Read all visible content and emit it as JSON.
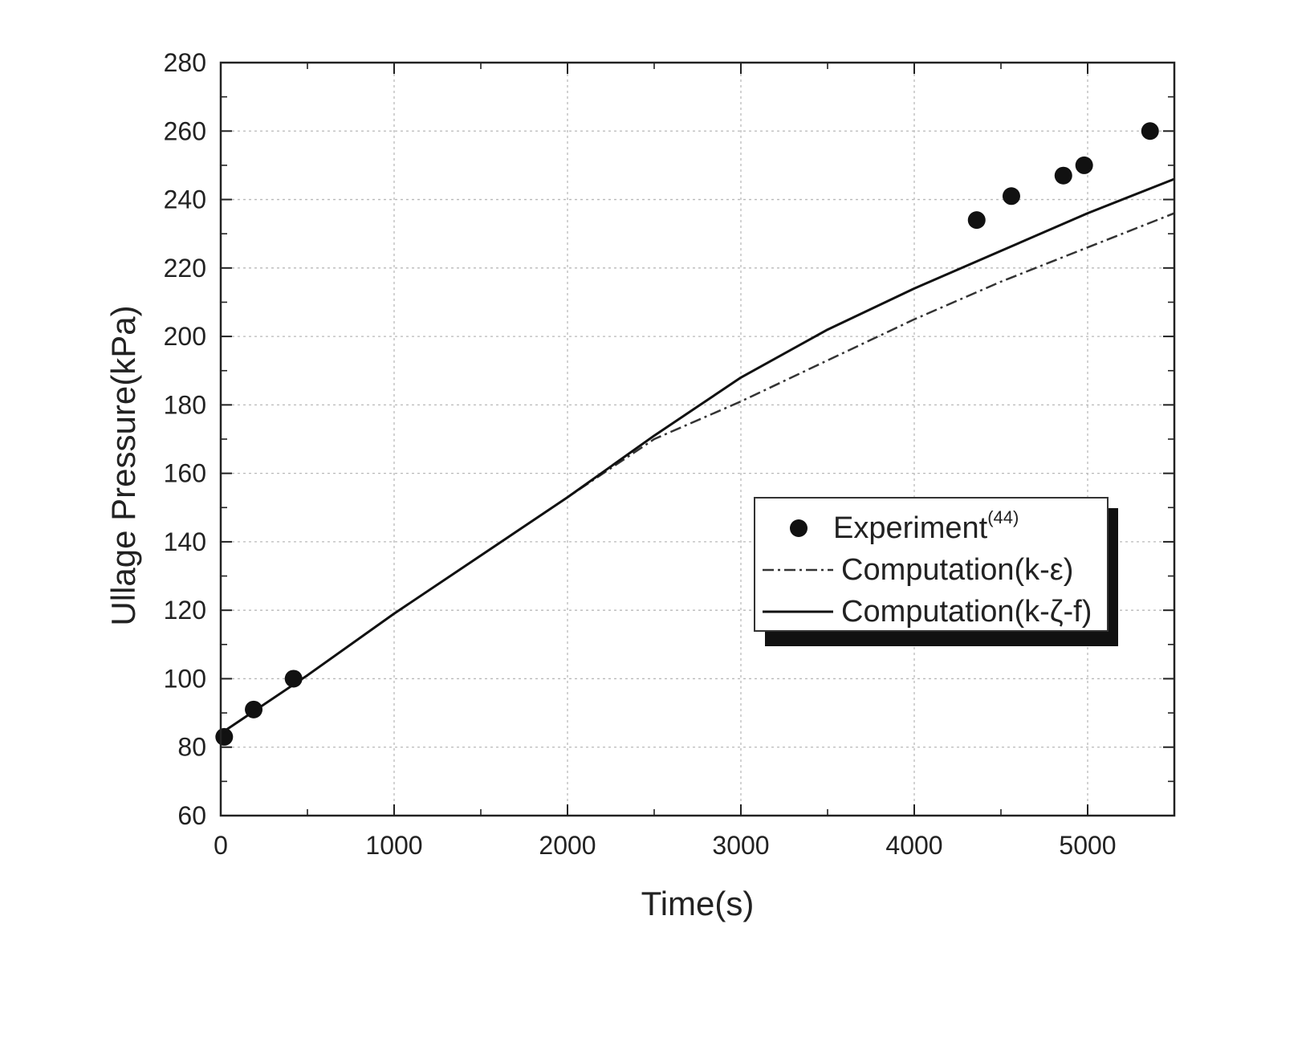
{
  "chart_data": {
    "type": "scatter",
    "title": "",
    "xlabel": "Time(s)",
    "ylabel": "Ullage Pressure(kPa)",
    "xlim": [
      0,
      5500
    ],
    "ylim": [
      60,
      280
    ],
    "xticks": [
      0,
      1000,
      2000,
      3000,
      4000,
      5000
    ],
    "yticks": [
      60,
      80,
      100,
      120,
      140,
      160,
      180,
      200,
      220,
      240,
      260,
      280
    ],
    "grid": true,
    "legend_position": "center-right",
    "series": [
      {
        "name": "Experiment",
        "name_superscript": "(44)",
        "style": "marker",
        "color": "#111111",
        "x": [
          20,
          190,
          420,
          4360,
          4560,
          4860,
          4980,
          5360
        ],
        "y": [
          83,
          91,
          100,
          234,
          241,
          247,
          250,
          260
        ]
      },
      {
        "name": "Computation(k-ε)",
        "style": "dash-dot",
        "color": "#333333",
        "x": [
          0,
          500,
          1000,
          1500,
          2000,
          2500,
          3000,
          3500,
          4000,
          4500,
          5000,
          5500
        ],
        "y": [
          84,
          101,
          119,
          136,
          153,
          170,
          181,
          193,
          205,
          216,
          226,
          236
        ]
      },
      {
        "name": "Computation(k-ζ-f)",
        "style": "solid",
        "color": "#111111",
        "x": [
          0,
          500,
          1000,
          1500,
          2000,
          2500,
          3000,
          3500,
          4000,
          4500,
          5000,
          5500
        ],
        "y": [
          84,
          101,
          119,
          136,
          153,
          171,
          188,
          202,
          214,
          225,
          236,
          246
        ]
      }
    ]
  }
}
